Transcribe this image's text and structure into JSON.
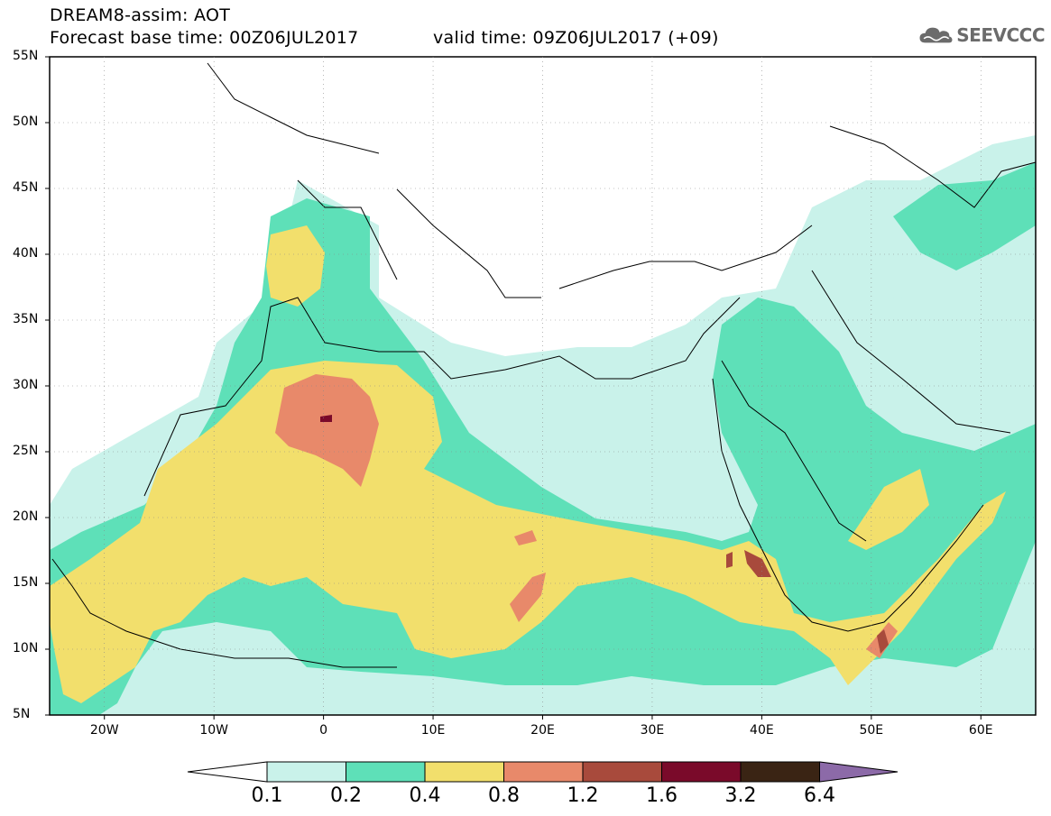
{
  "title": {
    "line1": "DREAM8-assim: AOT",
    "line2": "Forecast base time: 00Z06JUL2017",
    "valid": "valid time: 09Z06JUL2017 (+09)"
  },
  "logo": {
    "icon": "cloud-icon",
    "text": "SEEVCCC"
  },
  "lat_labels": [
    "55N",
    "50N",
    "45N",
    "40N",
    "35N",
    "30N",
    "25N",
    "20N",
    "15N",
    "10N",
    "5N"
  ],
  "lon_labels": [
    "20W",
    "10W",
    "0",
    "10E",
    "20E",
    "30E",
    "40E",
    "50E",
    "60E"
  ],
  "legend": {
    "levels": [
      "0.1",
      "0.2",
      "0.4",
      "0.8",
      "1.2",
      "1.6",
      "3.2",
      "6.4"
    ],
    "colors": [
      "#c9f2ea",
      "#5ee0b8",
      "#f2df6c",
      "#e8896a",
      "#a84a3c",
      "#7a0a2a",
      "#3a2414",
      "#8c6aa8"
    ]
  },
  "map": {
    "extent_lon": [
      -25,
      65
    ],
    "extent_lat": [
      5,
      55
    ],
    "colors": {
      "level1": "#c9f2ea",
      "level2": "#5ee0b8",
      "level3": "#f2df6c",
      "level4": "#e8896a",
      "level5": "#a84a3c",
      "level6": "#7a0a2a"
    }
  }
}
